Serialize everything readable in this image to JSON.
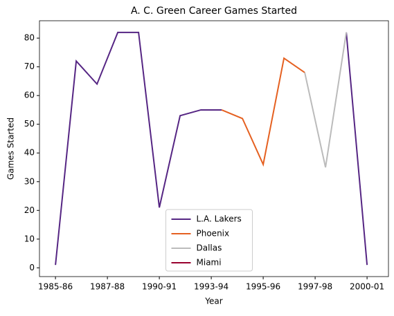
{
  "chart_data": {
    "type": "line",
    "title": "A. C. Green Career Games Started",
    "xlabel": "Year",
    "ylabel": "Games Started",
    "x": [
      0,
      1,
      2,
      3,
      4,
      5,
      6,
      7,
      8,
      9,
      10,
      11,
      12,
      13,
      14,
      15
    ],
    "series": [
      {
        "name": "L.A. Lakers",
        "color": "#552583",
        "values": [
          1,
          72,
          64,
          82,
          82,
          21,
          53,
          55,
          55,
          null,
          null,
          null,
          null,
          null,
          82,
          1
        ]
      },
      {
        "name": "Phoenix",
        "color": "#e56020",
        "values": [
          null,
          null,
          null,
          null,
          null,
          null,
          null,
          null,
          55,
          52,
          36,
          73,
          68,
          null,
          null,
          null
        ]
      },
      {
        "name": "Dallas",
        "color": "#bbbbbb",
        "values": [
          null,
          null,
          null,
          null,
          null,
          null,
          null,
          null,
          null,
          null,
          null,
          null,
          68,
          35,
          82,
          null
        ]
      },
      {
        "name": "Miami",
        "color": "#98002e",
        "values": [
          null,
          null,
          null,
          null,
          null,
          null,
          null,
          null,
          null,
          null,
          null,
          null,
          null,
          null,
          null,
          1
        ]
      }
    ],
    "xlim": [
      -0.77,
      16.03
    ],
    "xticks": [
      {
        "value": 0,
        "label": "1985-86"
      },
      {
        "value": 2.5,
        "label": "1987-88"
      },
      {
        "value": 5,
        "label": "1990-91"
      },
      {
        "value": 7.5,
        "label": "1993-94"
      },
      {
        "value": 10,
        "label": "1995-96"
      },
      {
        "value": 12.5,
        "label": "1997-98"
      },
      {
        "value": 15,
        "label": "2000-01"
      }
    ],
    "ylim": [
      -3.05,
      86.05
    ],
    "yticks": [
      0,
      10,
      20,
      30,
      40,
      50,
      60,
      70,
      80
    ],
    "legend": "lower center"
  }
}
